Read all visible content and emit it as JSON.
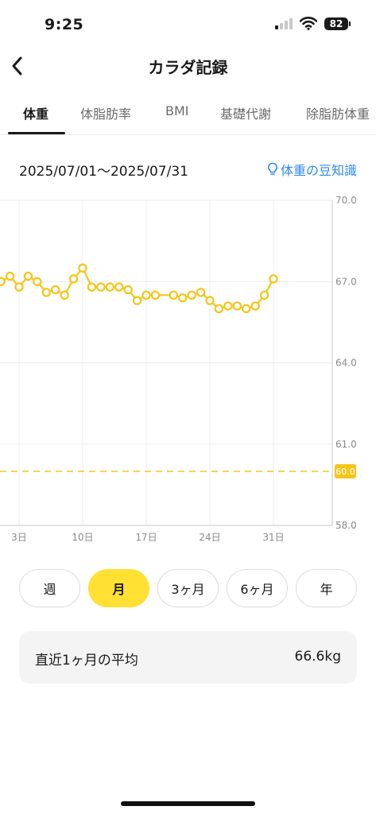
{
  "status_bar": {
    "time": "9:25",
    "battery": "82"
  },
  "nav": {
    "title": "カラダ記録"
  },
  "tabs": [
    {
      "label": "体重",
      "active": true
    },
    {
      "label": "体脂肪率",
      "active": false
    },
    {
      "label": "BMI",
      "active": false
    },
    {
      "label": "基礎代謝",
      "active": false
    },
    {
      "label": "除脂肪体重",
      "active": false
    }
  ],
  "date_range": "2025/07/01〜2025/07/31",
  "tips_link": "体重の豆知識",
  "colors": {
    "accent": "#ffe033",
    "line": "#f5c518",
    "target": "#f5c518",
    "link": "#2f8be8"
  },
  "chart_data": {
    "type": "line",
    "x_tick_labels": [
      "3日",
      "10日",
      "17日",
      "24日",
      "31日"
    ],
    "x_ticks": [
      3,
      10,
      17,
      24,
      31
    ],
    "y_tick_labels": [
      "70.0",
      "67.0",
      "64.0",
      "61.0",
      "58.0"
    ],
    "y_ticks": [
      70,
      67,
      64,
      61,
      58
    ],
    "ylim": [
      58,
      70
    ],
    "target": {
      "value": 60.0,
      "label": "60.0"
    },
    "series": [
      {
        "x": [
          1,
          2,
          3,
          4,
          5,
          6,
          7,
          8,
          9,
          10,
          11,
          12,
          13,
          14,
          15,
          16,
          17,
          18,
          20,
          21,
          22,
          23,
          24,
          25,
          26,
          27,
          28,
          29,
          30,
          31
        ],
        "values": [
          67.0,
          67.2,
          66.8,
          67.2,
          67.0,
          66.6,
          66.7,
          66.5,
          67.1,
          67.5,
          66.8,
          66.8,
          66.8,
          66.8,
          66.7,
          66.3,
          66.5,
          66.5,
          66.5,
          66.4,
          66.5,
          66.6,
          66.3,
          66.0,
          66.1,
          66.1,
          66.0,
          66.1,
          66.5,
          67.1
        ]
      }
    ]
  },
  "periods": [
    {
      "label": "週",
      "active": false
    },
    {
      "label": "月",
      "active": true
    },
    {
      "label": "3ヶ月",
      "active": false
    },
    {
      "label": "6ヶ月",
      "active": false
    },
    {
      "label": "年",
      "active": false
    }
  ],
  "average": {
    "label": "直近1ヶ月の平均",
    "value": "66.6kg"
  }
}
